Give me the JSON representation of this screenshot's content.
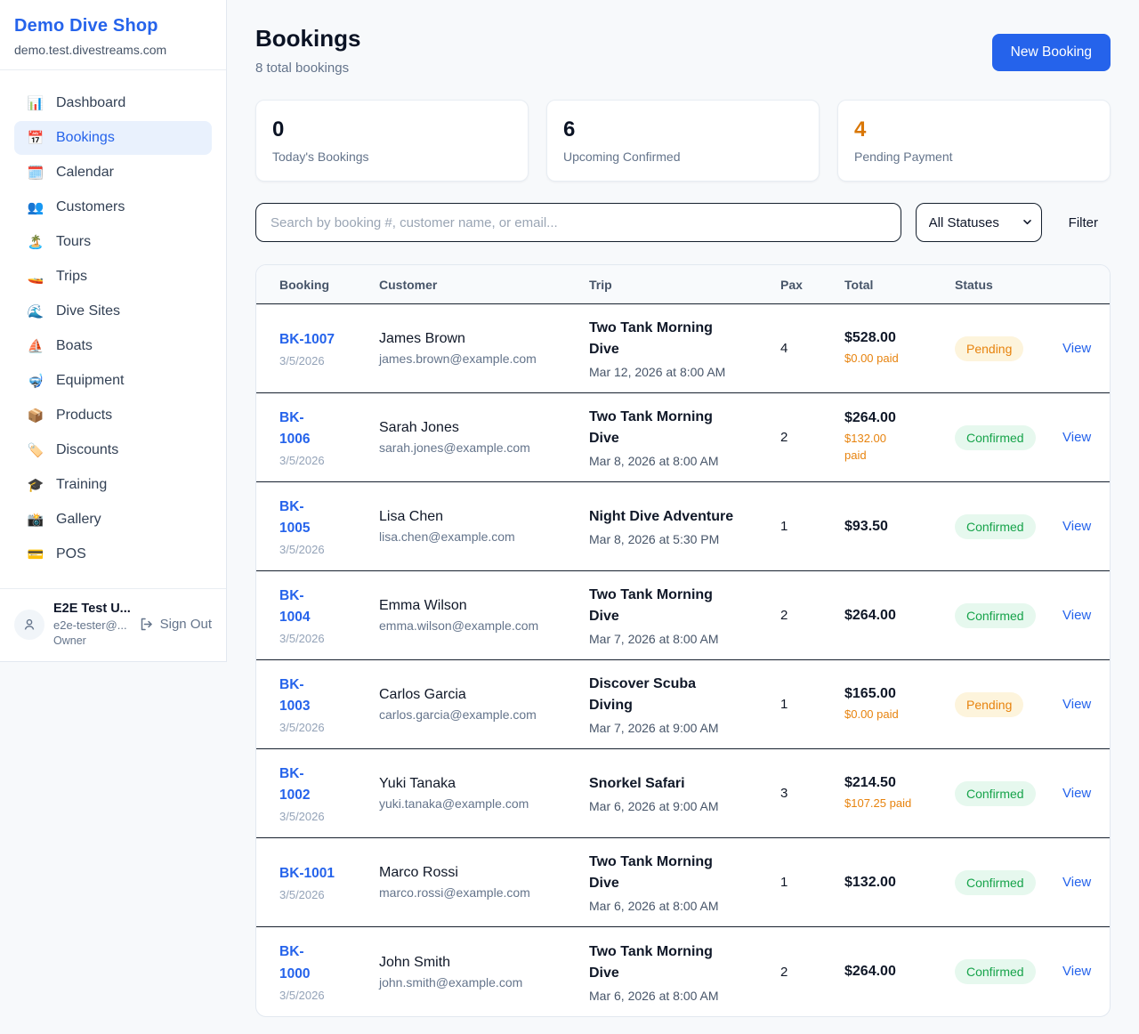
{
  "brand": {
    "name": "Demo Dive Shop",
    "domain": "demo.test.divestreams.com"
  },
  "sidebar": {
    "items": [
      {
        "label": "Dashboard",
        "icon": "📊",
        "icon_name": "bar-chart-icon",
        "active": false
      },
      {
        "label": "Bookings",
        "icon": "📅",
        "icon_name": "calendar-icon",
        "active": true
      },
      {
        "label": "Calendar",
        "icon": "🗓️",
        "icon_name": "spiral-calendar-icon",
        "active": false
      },
      {
        "label": "Customers",
        "icon": "👥",
        "icon_name": "users-icon",
        "active": false
      },
      {
        "label": "Tours",
        "icon": "🏝️",
        "icon_name": "island-icon",
        "active": false
      },
      {
        "label": "Trips",
        "icon": "🚤",
        "icon_name": "speedboat-icon",
        "active": false
      },
      {
        "label": "Dive Sites",
        "icon": "🌊",
        "icon_name": "wave-icon",
        "active": false
      },
      {
        "label": "Boats",
        "icon": "⛵",
        "icon_name": "sailboat-icon",
        "active": false
      },
      {
        "label": "Equipment",
        "icon": "🤿",
        "icon_name": "diving-mask-icon",
        "active": false
      },
      {
        "label": "Products",
        "icon": "📦",
        "icon_name": "package-icon",
        "active": false
      },
      {
        "label": "Discounts",
        "icon": "🏷️",
        "icon_name": "tag-icon",
        "active": false
      },
      {
        "label": "Training",
        "icon": "🎓",
        "icon_name": "graduation-cap-icon",
        "active": false
      },
      {
        "label": "Gallery",
        "icon": "📸",
        "icon_name": "camera-icon",
        "active": false
      },
      {
        "label": "POS",
        "icon": "💳",
        "icon_name": "credit-card-icon",
        "active": false
      }
    ],
    "user": {
      "name": "E2E Test U...",
      "email": "e2e-tester@...",
      "role": "Owner",
      "sign_out_label": "Sign Out"
    }
  },
  "header": {
    "title": "Bookings",
    "subtitle": "8 total bookings",
    "new_booking_label": "New Booking"
  },
  "stats": [
    {
      "value": "0",
      "label": "Today's Bookings",
      "accent": false
    },
    {
      "value": "6",
      "label": "Upcoming Confirmed",
      "accent": false
    },
    {
      "value": "4",
      "label": "Pending Payment",
      "accent": true
    }
  ],
  "filters": {
    "search_placeholder": "Search by booking #, customer name, or email...",
    "status_selected": "All Statuses",
    "filter_label": "Filter"
  },
  "table": {
    "columns": [
      "Booking",
      "Customer",
      "Trip",
      "Pax",
      "Total",
      "Status"
    ],
    "action_label": "View",
    "rows": [
      {
        "id": "BK-1007",
        "id_wrapped": false,
        "date": "3/5/2026",
        "customer_name": "James Brown",
        "customer_email": "james.brown@example.com",
        "trip_name": "Two Tank Morning Dive",
        "trip_datetime": "Mar 12, 2026 at 8:00 AM",
        "pax": "4",
        "total": "$528.00",
        "paid": "$0.00 paid",
        "paid_wrapped": false,
        "status": "Pending"
      },
      {
        "id": "BK-1006",
        "id_wrapped": true,
        "date": "3/5/2026",
        "customer_name": "Sarah Jones",
        "customer_email": "sarah.jones@example.com",
        "trip_name": "Two Tank Morning Dive",
        "trip_datetime": "Mar 8, 2026 at 8:00 AM",
        "pax": "2",
        "total": "$264.00",
        "paid": "$132.00 paid",
        "paid_wrapped": true,
        "status": "Confirmed"
      },
      {
        "id": "BK-1005",
        "id_wrapped": true,
        "date": "3/5/2026",
        "customer_name": "Lisa Chen",
        "customer_email": "lisa.chen@example.com",
        "trip_name": "Night Dive Adventure",
        "trip_datetime": "Mar 8, 2026 at 5:30 PM",
        "pax": "1",
        "total": "$93.50",
        "paid": "",
        "paid_wrapped": false,
        "status": "Confirmed"
      },
      {
        "id": "BK-1004",
        "id_wrapped": true,
        "date": "3/5/2026",
        "customer_name": "Emma Wilson",
        "customer_email": "emma.wilson@example.com",
        "trip_name": "Two Tank Morning Dive",
        "trip_datetime": "Mar 7, 2026 at 8:00 AM",
        "pax": "2",
        "total": "$264.00",
        "paid": "",
        "paid_wrapped": false,
        "status": "Confirmed"
      },
      {
        "id": "BK-1003",
        "id_wrapped": true,
        "date": "3/5/2026",
        "customer_name": "Carlos Garcia",
        "customer_email": "carlos.garcia@example.com",
        "trip_name": "Discover Scuba Diving",
        "trip_datetime": "Mar 7, 2026 at 9:00 AM",
        "pax": "1",
        "total": "$165.00",
        "paid": "$0.00 paid",
        "paid_wrapped": false,
        "status": "Pending"
      },
      {
        "id": "BK-1002",
        "id_wrapped": true,
        "date": "3/5/2026",
        "customer_name": "Yuki Tanaka",
        "customer_email": "yuki.tanaka@example.com",
        "trip_name": "Snorkel Safari",
        "trip_datetime": "Mar 6, 2026 at 9:00 AM",
        "pax": "3",
        "total": "$214.50",
        "paid": "$107.25 paid",
        "paid_wrapped": false,
        "status": "Confirmed"
      },
      {
        "id": "BK-1001",
        "id_wrapped": false,
        "date": "3/5/2026",
        "customer_name": "Marco Rossi",
        "customer_email": "marco.rossi@example.com",
        "trip_name": "Two Tank Morning Dive",
        "trip_datetime": "Mar 6, 2026 at 8:00 AM",
        "pax": "1",
        "total": "$132.00",
        "paid": "",
        "paid_wrapped": false,
        "status": "Confirmed"
      },
      {
        "id": "BK-1000",
        "id_wrapped": true,
        "date": "3/5/2026",
        "customer_name": "John Smith",
        "customer_email": "john.smith@example.com",
        "trip_name": "Two Tank Morning Dive",
        "trip_datetime": "Mar 6, 2026 at 8:00 AM",
        "pax": "2",
        "total": "$264.00",
        "paid": "",
        "paid_wrapped": false,
        "status": "Confirmed"
      }
    ]
  },
  "colors": {
    "accent_blue": "#2563eb",
    "stat_orange": "#d97706",
    "paid_orange": "#e7830e",
    "pending_text": "#e7830e",
    "pending_bg": "#fdf4dc",
    "confirmed_text": "#16a34a",
    "confirmed_bg": "#e6f8ee",
    "row_divider": "#16202e"
  }
}
